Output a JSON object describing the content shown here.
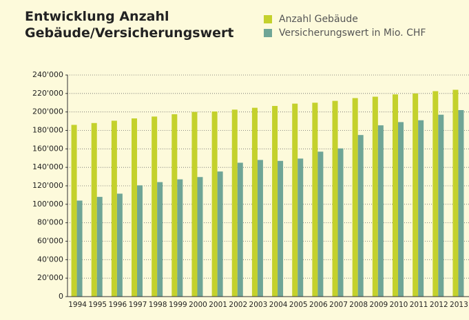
{
  "chart_data": {
    "type": "bar",
    "title": "Entwicklung Anzahl Gebäude/Versicherungswert",
    "categories": [
      "1994",
      "1995",
      "1996",
      "1997",
      "1998",
      "1999",
      "2000",
      "2001",
      "2002",
      "2003",
      "2004",
      "2005",
      "2006",
      "2007",
      "2008",
      "2009",
      "2010",
      "2011",
      "2012",
      "2013"
    ],
    "series": [
      {
        "name": "Anzahl Gebäude",
        "color": "#c4d12c",
        "values": [
          186000,
          188000,
          190500,
          193000,
          195000,
          197500,
          200000,
          200500,
          202500,
          204500,
          206500,
          209000,
          210000,
          212000,
          215000,
          216500,
          219000,
          220000,
          222500,
          224000
        ]
      },
      {
        "name": "Versicherungswert in Mio. CHF",
        "color": "#6fa596",
        "values": [
          104000,
          108000,
          111500,
          120500,
          124000,
          127000,
          129500,
          135500,
          145000,
          148000,
          147000,
          149500,
          157000,
          160500,
          175000,
          185500,
          189000,
          191000,
          197000,
          202000
        ]
      }
    ],
    "ylim": [
      0,
      240000
    ],
    "yticks": [
      0,
      {
        "value": 20000,
        "label": "20'000"
      },
      {
        "value": 40000,
        "label": "40'000"
      },
      {
        "value": 60000,
        "label": "60'000"
      },
      {
        "value": 80000,
        "label": "80'000"
      },
      {
        "value": 100000,
        "label": "100'000"
      },
      {
        "value": 120000,
        "label": "120'000"
      },
      {
        "value": 140000,
        "label": "140'000"
      },
      {
        "value": 160000,
        "label": "160'000"
      },
      {
        "value": 180000,
        "label": "180'000"
      },
      {
        "value": 200000,
        "label": "200'000"
      },
      {
        "value": 220000,
        "label": "220'000"
      },
      {
        "value": 240000,
        "label": "240'000"
      }
    ],
    "grid": true
  }
}
